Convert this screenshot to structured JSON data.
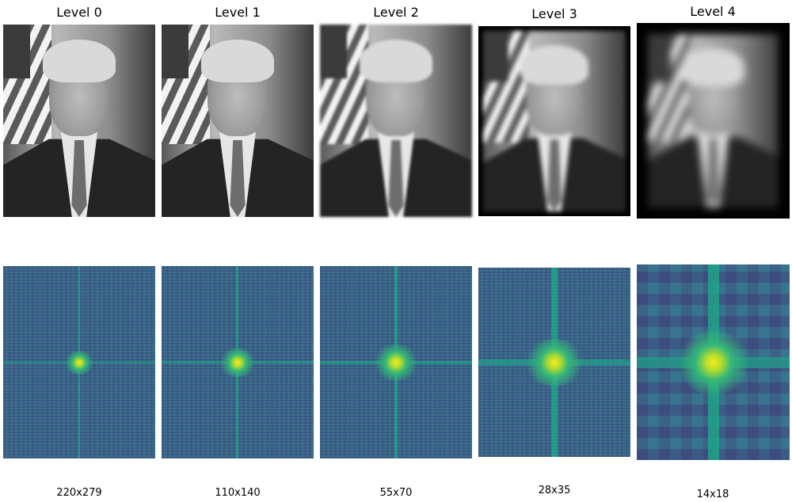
{
  "levels": [
    {
      "title": "Level 0",
      "size": "220x279"
    },
    {
      "title": "Level 1",
      "size": "110x140"
    },
    {
      "title": "Level 2",
      "size": "55x70"
    },
    {
      "title": "Level 3",
      "size": "28x35"
    },
    {
      "title": "Level 4",
      "size": "14x18"
    }
  ],
  "colors": {
    "background": "#ffffff",
    "fft_low": "#3b528b",
    "fft_mid": "#21918c",
    "fft_high": "#fde725"
  }
}
